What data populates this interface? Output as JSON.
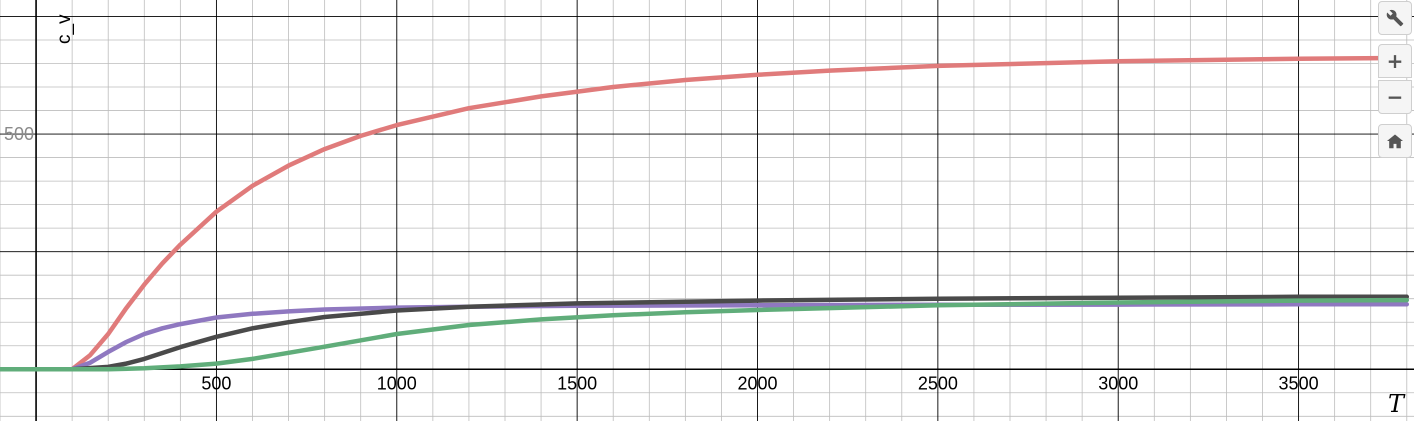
{
  "chart_data": {
    "type": "line",
    "xlabel": "T",
    "ylabel": "c_v",
    "xlim": [
      -100,
      3820
    ],
    "ylim": [
      -110,
      785
    ],
    "x_ticks": [
      500,
      1000,
      1500,
      2000,
      2500,
      3000,
      3500
    ],
    "x_tick_labels": [
      "500",
      "1000",
      "1500",
      "2000",
      "2500",
      "3000",
      "3500"
    ],
    "y_ticks": [
      500
    ],
    "y_tick_labels": [
      "500"
    ],
    "grid": true,
    "series": [
      {
        "color": "#e07b7b",
        "x": [
          0,
          100,
          150,
          200,
          250,
          300,
          350,
          400,
          500,
          600,
          700,
          800,
          900,
          1000,
          1200,
          1400,
          1600,
          1800,
          2000,
          2200,
          2500,
          3000,
          3500,
          3800
        ],
        "y": [
          0,
          0,
          30,
          75,
          130,
          180,
          225,
          265,
          335,
          390,
          433,
          468,
          496,
          519,
          555,
          580,
          600,
          615,
          626,
          635,
          645,
          655,
          660,
          662
        ]
      },
      {
        "color": "#8f78c0",
        "x": [
          0,
          100,
          150,
          200,
          250,
          300,
          350,
          400,
          500,
          600,
          700,
          800,
          1000,
          1200,
          1500,
          2000,
          2500,
          3000,
          3500,
          3800
        ],
        "y": [
          0,
          0,
          14,
          37,
          58,
          75,
          87,
          96,
          110,
          118,
          123,
          127,
          131,
          133,
          135,
          136,
          137,
          137.5,
          138,
          138
        ]
      },
      {
        "color": "#4a4a4a",
        "x": [
          0,
          100,
          200,
          250,
          300,
          400,
          500,
          600,
          700,
          800,
          1000,
          1200,
          1500,
          2000,
          2500,
          3000,
          3500,
          3800
        ],
        "y": [
          0,
          0,
          5,
          12,
          22,
          47,
          69,
          87,
          100,
          111,
          125,
          133,
          140,
          146,
          150,
          152,
          154,
          154
        ]
      },
      {
        "color": "#60ad7a",
        "x": [
          0,
          100,
          200,
          300,
          400,
          500,
          600,
          700,
          800,
          1000,
          1200,
          1400,
          1600,
          1800,
          2000,
          2500,
          3000,
          3500,
          3800
        ],
        "y": [
          0,
          0,
          0,
          2,
          6,
          12,
          22,
          35,
          48,
          75,
          94,
          106,
          115,
          121,
          126,
          136,
          142,
          146,
          147
        ]
      }
    ]
  },
  "toolbar": {
    "settings_icon": "wrench-icon",
    "zoom_in_symbol": "+",
    "zoom_out_symbol": "−",
    "home_icon": "home-icon"
  }
}
